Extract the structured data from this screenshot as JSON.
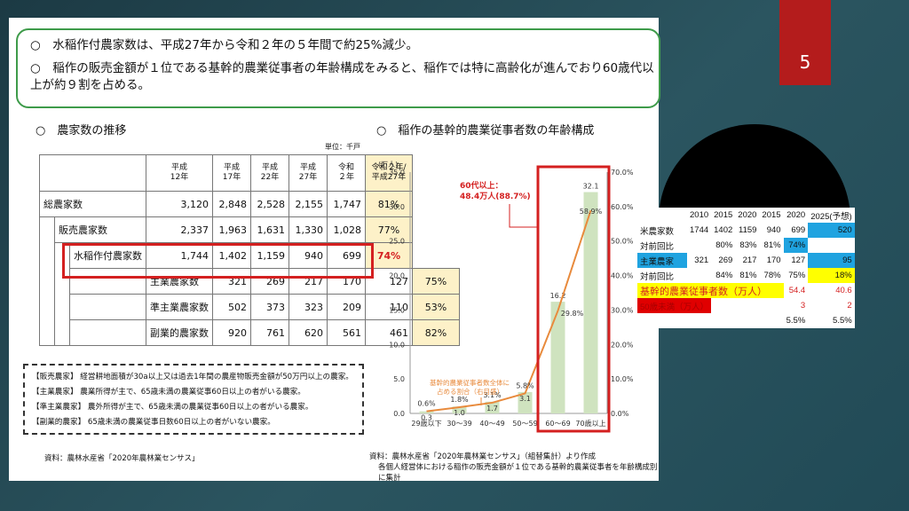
{
  "page_number": "5",
  "summary": {
    "line1": "○　水稲作付農家数は、平成27年から令和２年の５年間で約25%減少。",
    "line2a": "○　稲作の販売金額が１位である基幹的農業従事者の年齢構成をみると、稲作では特に高齢化が進んでおり60歳代以",
    "line2b": "上が約９割を占める。"
  },
  "farm_table": {
    "title": "○　農家数の推移",
    "unit": "単位：千戸",
    "headers": [
      {
        "a": "平成",
        "b": "12年"
      },
      {
        "a": "平成",
        "b": "17年"
      },
      {
        "a": "平成",
        "b": "22年"
      },
      {
        "a": "平成",
        "b": "27年"
      },
      {
        "a": "令和",
        "b": "２年"
      },
      {
        "a": "令和２年/",
        "b": "平成27年"
      }
    ],
    "rows": [
      {
        "label": "総農家数",
        "values": [
          "3,120",
          "2,848",
          "2,528",
          "2,155",
          "1,747"
        ],
        "ratio": "81%"
      },
      {
        "label": "販売農家数",
        "values": [
          "2,337",
          "1,963",
          "1,631",
          "1,330",
          "1,028"
        ],
        "ratio": "77%"
      },
      {
        "label": "水稲作付農家数",
        "values": [
          "1,744",
          "1,402",
          "1,159",
          "940",
          "699"
        ],
        "ratio": "74%"
      },
      {
        "label": "主業農家数",
        "values": [
          "321",
          "269",
          "217",
          "170",
          "127"
        ],
        "ratio": "75%"
      },
      {
        "label": "準主業農家数",
        "values": [
          "502",
          "373",
          "323",
          "209",
          "110"
        ],
        "ratio": "53%"
      },
      {
        "label": "副業的農家数",
        "values": [
          "920",
          "761",
          "620",
          "561",
          "461"
        ],
        "ratio": "82%"
      }
    ]
  },
  "definitions": [
    "【販売農家】 経営耕地面積が30a以上又は過去1年間の農産物販売金額が50万円以上の農家。",
    "【主業農家】 農業所得が主で、65歳未満の農業従事60日以上の者がいる農家。",
    "【準主業農家】 農外所得が主で、65歳未満の農業従事60日以上の者がいる農家。",
    "【副業的農家】 65歳未満の農業従事日数60日以上の者がいない農家。"
  ],
  "source_left": "資料：農林水産省「2020年農林業センサス」",
  "chart_title": "○　稲作の基幹的農業従事者数の年齢構成",
  "source_right1": "資料：農林水産省「2020年農林業センサス」（組替集計）より作成",
  "source_right2": "各個人経営体における稲作の販売金額が１位である基幹的農業従事者を年齢構成別に集計",
  "chart_data": {
    "type": "bar",
    "title": "稲作の基幹的農業従事者数の年齢構成",
    "ylabel": "(万人)",
    "categories": [
      "29歳以下",
      "30～39",
      "40～49",
      "50～59",
      "60～69",
      "70歳以上"
    ],
    "series": [
      {
        "name": "基幹的農業従事者数",
        "type": "bar",
        "axis": "left",
        "values": [
          0.3,
          1.0,
          1.7,
          3.1,
          16.2,
          32.1
        ],
        "labels": [
          "0.3",
          "1.0",
          "1.7",
          "3.1",
          "16.2",
          "32.1"
        ]
      },
      {
        "name": "基幹的農業従事者数全体に占める割合（右目盛）",
        "type": "line",
        "axis": "right",
        "values": [
          0.6,
          1.8,
          3.1,
          5.8,
          29.8,
          58.9
        ],
        "labels": [
          "0.6%",
          "1.8%",
          "3.1%",
          "5.8%",
          "29.8%",
          "58.9%"
        ]
      }
    ],
    "ylim": [
      0,
      35
    ],
    "yticks": [
      "0.0",
      "5.0",
      "10.0",
      "15.0",
      "20.0",
      "25.0",
      "30.0",
      "35.0"
    ],
    "y2lim": [
      0,
      70
    ],
    "y2ticks": [
      "0.0%",
      "10.0%",
      "20.0%",
      "30.0%",
      "40.0%",
      "50.0%",
      "60.0%",
      "70.0%"
    ],
    "callout1": "60代以上：",
    "callout2": "48.4万人(88.7%)",
    "line_note1": "基幹的農業従事者数全体に",
    "line_note2": "占める割合（右目盛）",
    "colors": {
      "bar": "#cfe3bf",
      "line": "#e88a3c",
      "highlight": "#d42020"
    }
  },
  "spreadsheet": {
    "header": [
      "",
      "2010",
      "2015",
      "2020",
      "2015",
      "2020",
      "2025(予想)"
    ],
    "rows": [
      {
        "label": "米農家数",
        "cells": [
          "1744",
          "1402",
          "1159",
          "940",
          "699",
          "520"
        ],
        "fill": [
          "",
          "",
          "",
          "",
          "",
          "#1fa3e0"
        ]
      },
      {
        "label": "対前回比",
        "cells": [
          "",
          "80%",
          "83%",
          "81%",
          "74%",
          ""
        ],
        "fill": [
          "",
          "",
          "",
          "",
          "#1fa3e0",
          ""
        ]
      },
      {
        "label": "主業農家",
        "cells": [
          "321",
          "269",
          "217",
          "170",
          "127",
          "95"
        ],
        "fill": [
          "",
          "",
          "",
          "",
          "",
          "#1fa3e0"
        ],
        "label_fill": "#1fa3e0"
      },
      {
        "label": "対前回比",
        "cells": [
          "",
          "84%",
          "81%",
          "78%",
          "75%",
          "18%"
        ],
        "fill": [
          "",
          "",
          "",
          "",
          "",
          "#ffff00"
        ]
      }
    ],
    "worker_label": "基幹的農業従事者数（万人）",
    "worker_values": [
      "54.4",
      "40.6"
    ],
    "young_label": "50歳未満（万人）",
    "young_values": [
      "3",
      "2"
    ],
    "pct_values": [
      "5.5%",
      "5.5%"
    ]
  }
}
